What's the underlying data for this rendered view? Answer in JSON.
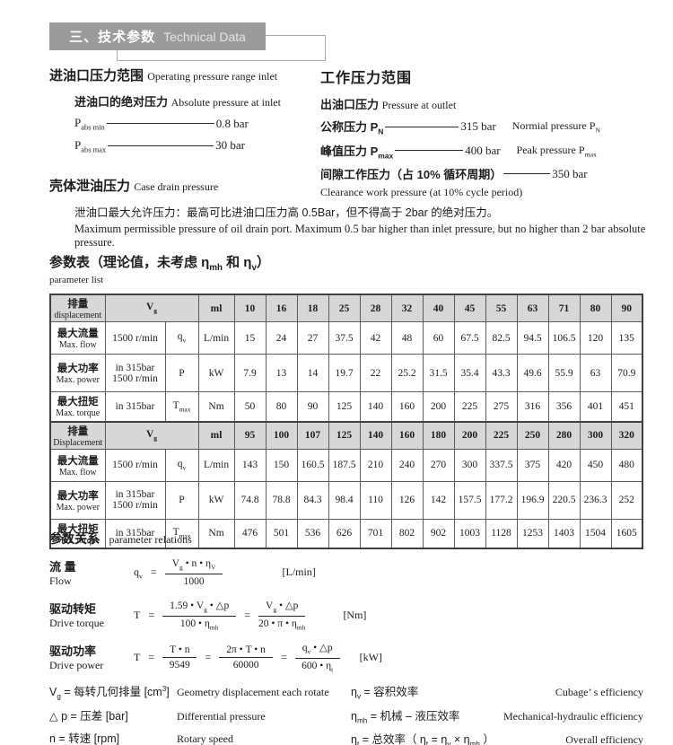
{
  "header": {
    "title_zh": "三、技术参数",
    "title_en": "Technical Data"
  },
  "inlet": {
    "heading_zh": "进油口压力范围",
    "heading_en": "Operating pressure range inlet",
    "sub_zh": "进油口的绝对压力",
    "sub_en": "Absolute pressure at inlet",
    "rows": [
      {
        "label": "P<sub>abs min</sub>",
        "value": "0.8 bar"
      },
      {
        "label": "P<sub>abs max</sub>",
        "value": "30 bar"
      }
    ]
  },
  "working": {
    "heading_zh": "工作压力范围",
    "sub_zh": "出油口压力",
    "sub_en": "Pressure at outlet",
    "rows": [
      {
        "label": "公称压力 P<sub>N</sub>",
        "value": "315 bar",
        "en": "Normial  pressure P<sub>N</sub>"
      },
      {
        "label": "峰值压力 P<sub>max</sub>",
        "value": "400 bar",
        "en": "Peak pressure P<sub>max</sub>"
      },
      {
        "label": "间隙工作压力（占 10% 循环周期）",
        "value": "350 bar",
        "en": ""
      }
    ],
    "clearance_en": "Clearance work pressure (at 10% cycle period)"
  },
  "case_drain": {
    "heading_zh": "壳体泄油压力",
    "heading_en": "Case drain pressure",
    "line_zh": "泄油口最大允许压力：最高可比进油口压力高 0.5Bar，但不得高于 2bar 的绝对压力。",
    "line_en": "Maximum permissible pressure of oil drain port. Maximum 0.5 bar higher than inlet pressure, but no higher than 2 bar absolute pressure."
  },
  "param_table": {
    "title": "参数表（理论值，未考虑 η<sub>mh</sub> 和 η<sub>v</sub>）",
    "subtitle": "parameter list",
    "blocks": [
      {
        "disp_zh": "排量",
        "disp_en": "displacement",
        "vg": "V<sub>g</sub>",
        "unit": "ml",
        "sizes": [
          "10",
          "16",
          "18",
          "25",
          "28",
          "32",
          "40",
          "45",
          "55",
          "63",
          "71",
          "80",
          "90"
        ],
        "rows": [
          {
            "zh": "最大流量",
            "en": "Max. flow",
            "cond": "1500 r/min",
            "sym": "q<sub>v</sub>",
            "unit": "L/min",
            "values": [
              "15",
              "24",
              "27",
              "37.5",
              "42",
              "48",
              "60",
              "67.5",
              "82.5",
              "94.5",
              "106.5",
              "120",
              "135"
            ]
          },
          {
            "zh": "最大功率",
            "en": "Max. power",
            "cond": "in 315bar<br>1500 r/min",
            "sym": "P",
            "unit": "kW",
            "values": [
              "7.9",
              "13",
              "14",
              "19.7",
              "22",
              "25.2",
              "31.5",
              "35.4",
              "43.3",
              "49.6",
              "55.9",
              "63",
              "70.9"
            ]
          },
          {
            "zh": "最大扭矩",
            "en": "Max. torque",
            "cond": "in 315bar",
            "sym": "T<sub>max</sub>",
            "unit": "Nm",
            "values": [
              "50",
              "80",
              "90",
              "125",
              "140",
              "160",
              "200",
              "225",
              "275",
              "316",
              "356",
              "401",
              "451"
            ]
          }
        ]
      },
      {
        "disp_zh": "排量",
        "disp_en": "Displacement",
        "vg": "V<sub>g</sub>",
        "unit": "ml",
        "sizes": [
          "95",
          "100",
          "107",
          "125",
          "140",
          "160",
          "180",
          "200",
          "225",
          "250",
          "280",
          "300",
          "320"
        ],
        "rows": [
          {
            "zh": "最大流量",
            "en": "Max. flow",
            "cond": "1500 r/min",
            "sym": "q<sub>v</sub>",
            "unit": "L/min",
            "values": [
              "143",
              "150",
              "160.5",
              "187.5",
              "210",
              "240",
              "270",
              "300",
              "337.5",
              "375",
              "420",
              "450",
              "480"
            ]
          },
          {
            "zh": "最大功率",
            "en": "Max. power",
            "cond": "in  315bar<br>1500 r/min",
            "sym": "P",
            "unit": "kW",
            "values": [
              "74.8",
              "78.8",
              "84.3",
              "98.4",
              "110",
              "126",
              "142",
              "157.5",
              "177.2",
              "196.9",
              "220.5",
              "236.3",
              "252"
            ]
          },
          {
            "zh": "最大扭矩",
            "en": "Max. torque",
            "cond": "in 315bar",
            "sym": "T<sub>max</sub>",
            "unit": "Nm",
            "values": [
              "476",
              "501",
              "536",
              "626",
              "701",
              "802",
              "902",
              "1003",
              "1128",
              "1253",
              "1403",
              "1504",
              "1605"
            ]
          }
        ]
      }
    ]
  },
  "relations": {
    "title_zh": "参数关系",
    "title_en": "parameter relations",
    "eq": "=",
    "flow": {
      "zh": "流 量",
      "en": "Flow",
      "lhs": "q<sub>v</sub>",
      "num1": "V<sub>g</sub> • n • η<sub>V</sub>",
      "den1": "1000",
      "unit": "[L/min]"
    },
    "torque": {
      "zh": "驱动转矩",
      "en": "Drive torque",
      "lhs": "T",
      "num1": "1.59 • V<sub>g</sub> • △p",
      "den1": "100 • η<sub>mh</sub>",
      "num2": "V<sub>g</sub> • △p",
      "den2": "20 • π • η<sub>mh</sub>",
      "unit": "[Nm]"
    },
    "power": {
      "zh": "驱动功率",
      "en": "Drive power",
      "lhs": "T",
      "num1": "T • n",
      "den1": "9549",
      "num2": "2π • T • n",
      "den2": "60000",
      "num3": "q<sub>v</sub> • △p",
      "den3": "600 • η<sub>t</sub>",
      "unit": "[kW]"
    }
  },
  "definitions": {
    "left": [
      {
        "term": "V<sub>g</sub> = 每转几何排量 [cm<sup>3</sup>]",
        "en": "Geometry displacement each rotate"
      },
      {
        "term": "△ p = 压差 [bar]",
        "en": "Differential pressure"
      },
      {
        "term": "n = 转速 [rpm]",
        "en": "Rotary speed"
      }
    ],
    "right": [
      {
        "term": "η<sub>v</sub> = 容积效率",
        "en": "Cubage’ s efficiency"
      },
      {
        "term": "η<sub>mh</sub> = 机械 – 液压效率",
        "en": "Mechanical-hydraulic efficiency"
      },
      {
        "term": "η<sub>t</sub> = 总效率（ η<sub>t</sub> = η<sub>v</sub> × η<sub>mh</sub> ）",
        "en": "Overall efficiency"
      }
    ]
  }
}
